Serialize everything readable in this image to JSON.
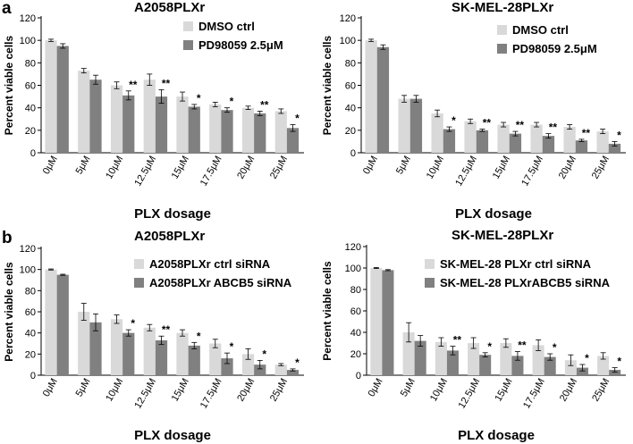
{
  "panels": [
    {
      "letter": "a"
    },
    {
      "letter": "b"
    }
  ],
  "colors": {
    "ctrl": "#d9d9d9",
    "treat": "#808080",
    "axis": "#000000",
    "error": "#000000"
  },
  "chart_data": [
    {
      "type": "bar",
      "title": "A2058PLXr",
      "xlabel": "PLX dosage",
      "ylabel": "Percent viable cells",
      "ylim": [
        0,
        120
      ],
      "yticks": [
        0,
        20,
        40,
        60,
        80,
        100,
        120
      ],
      "categories": [
        "0μM",
        "5μM",
        "10μM",
        "12.5μM",
        "15μM",
        "17.5μM",
        "20μM",
        "25μM"
      ],
      "legend_position": "top-right",
      "series": [
        {
          "name": "DMSO ctrl",
          "values": [
            100,
            73,
            60,
            65,
            50,
            43,
            40,
            37
          ],
          "errors": [
            1,
            2,
            3,
            5,
            4,
            2,
            1.5,
            2
          ]
        },
        {
          "name": "PD98059 2.5μM",
          "values": [
            95,
            65,
            51,
            50,
            41,
            38,
            35,
            22
          ],
          "errors": [
            2,
            4,
            4,
            6,
            2,
            2,
            2,
            3
          ]
        }
      ],
      "significance": [
        "",
        "",
        "**",
        "**",
        "*",
        "*",
        "**",
        "*"
      ]
    },
    {
      "type": "bar",
      "title": "SK-MEL-28PLXr",
      "xlabel": "PLX dosage",
      "ylabel": "Percent viable cells",
      "ylim": [
        0,
        120
      ],
      "yticks": [
        0,
        20,
        40,
        60,
        80,
        100,
        120
      ],
      "categories": [
        "0μM",
        "5μM",
        "10μM",
        "12.5μM",
        "15μM",
        "17.5μM",
        "20μM",
        "25μM"
      ],
      "legend_position": "top-right",
      "series": [
        {
          "name": "DMSO ctrl",
          "values": [
            100,
            48,
            35,
            28,
            25,
            25,
            23,
            19
          ],
          "errors": [
            1,
            3,
            3,
            2,
            2,
            2,
            2,
            2
          ]
        },
        {
          "name": "PD98059 2.5μM",
          "values": [
            94,
            48,
            21,
            20,
            17,
            15,
            11,
            8
          ],
          "errors": [
            2,
            3,
            2,
            1,
            2,
            2,
            1,
            2
          ]
        }
      ],
      "significance": [
        "",
        "",
        "*",
        "**",
        "**",
        "**",
        "**",
        "*"
      ]
    },
    {
      "type": "bar",
      "title": "A2058PLXr",
      "xlabel": "PLX dosage",
      "ylabel": "Percent viable cells",
      "ylim": [
        0,
        120
      ],
      "yticks": [
        0,
        20,
        40,
        60,
        80,
        100,
        120
      ],
      "categories": [
        "0μM",
        "5μM",
        "10μM",
        "12.5μM",
        "15μM",
        "17.5μM",
        "20μM",
        "25μM"
      ],
      "legend_position": "top-right",
      "series": [
        {
          "name": "A2058PLXr ctrl siRNA",
          "values": [
            100,
            60,
            53,
            45,
            40,
            30,
            20,
            10
          ],
          "errors": [
            0.5,
            8,
            4,
            3,
            3,
            4,
            5,
            1
          ]
        },
        {
          "name": "A2058PLXr ABCB5 siRNA",
          "values": [
            95,
            50,
            40,
            33,
            28,
            16,
            10,
            5
          ],
          "errors": [
            0.5,
            8,
            3,
            4,
            3,
            5,
            4,
            1
          ]
        }
      ],
      "significance": [
        "",
        "",
        "*",
        "**",
        "*",
        "*",
        "*",
        "*"
      ]
    },
    {
      "type": "bar",
      "title": "SK-MEL-28PLXr",
      "xlabel": "PLX dosage",
      "ylabel": "Percent viable cells",
      "ylim": [
        0,
        120
      ],
      "yticks": [
        0,
        20,
        40,
        60,
        80,
        100,
        120
      ],
      "categories": [
        "0μM",
        "5μM",
        "10μM",
        "12.5μM",
        "15μM",
        "17.5μM",
        "20μM",
        "25μM"
      ],
      "legend_position": "top-right",
      "series": [
        {
          "name": "SK-MEL-28 PLXr ctrl siRNA",
          "values": [
            100,
            40,
            31,
            30,
            30,
            28,
            14,
            18
          ],
          "errors": [
            0.5,
            9,
            4,
            5,
            4,
            5,
            5,
            3
          ]
        },
        {
          "name": "SK-MEL-28 PLXrABCB5 siRNA",
          "values": [
            98,
            32,
            23,
            19,
            18,
            17,
            7,
            5
          ],
          "errors": [
            0.5,
            5,
            4,
            2,
            4,
            3,
            3,
            2
          ]
        }
      ],
      "significance": [
        "",
        "",
        "**",
        "*",
        "**",
        "*",
        "*",
        "*"
      ]
    }
  ]
}
